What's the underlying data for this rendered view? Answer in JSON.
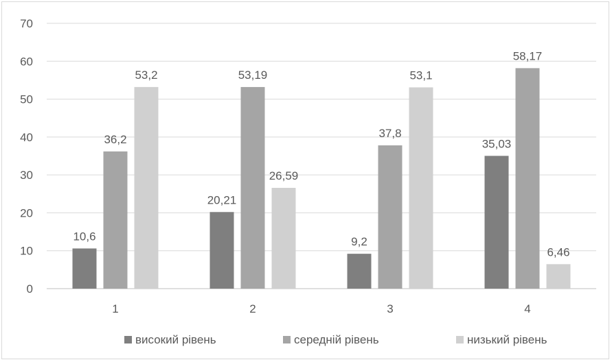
{
  "chart_data": {
    "type": "bar",
    "categories": [
      "1",
      "2",
      "3",
      "4"
    ],
    "series": [
      {
        "name": "високий рівень",
        "values": [
          10.6,
          20.21,
          9.2,
          35.03
        ],
        "labels": [
          "10,6",
          "20,21",
          "9,2",
          "35,03"
        ],
        "color": "#7f7f7f"
      },
      {
        "name": "середній рівень",
        "values": [
          36.2,
          53.19,
          37.8,
          58.17
        ],
        "labels": [
          "36,2",
          "53,19",
          "37,8",
          "58,17"
        ],
        "color": "#a5a5a5"
      },
      {
        "name": "низький рівень",
        "values": [
          53.2,
          26.59,
          53.1,
          6.46
        ],
        "labels": [
          "53,2",
          "26,59",
          "53,1",
          "6,46"
        ],
        "color": "#d0d0d0"
      }
    ],
    "yticks": [
      "0",
      "10",
      "20",
      "30",
      "40",
      "50",
      "60",
      "70"
    ],
    "ylim": [
      0,
      70
    ],
    "grid": true,
    "legend_position": "bottom"
  }
}
